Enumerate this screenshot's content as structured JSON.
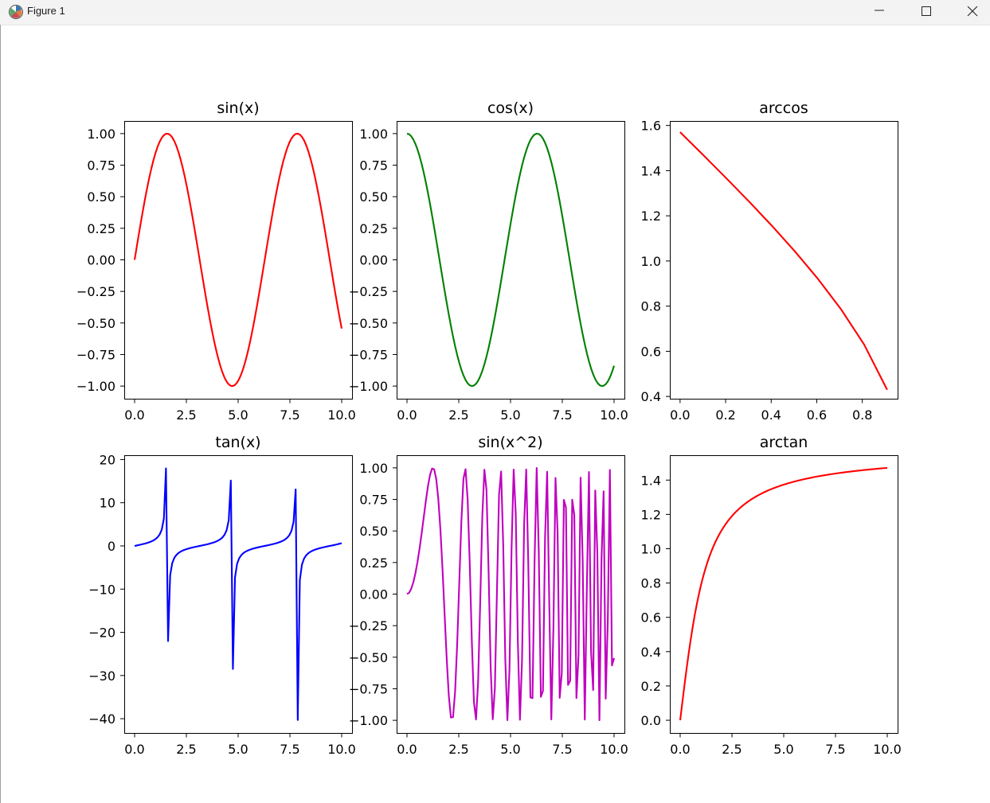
{
  "window": {
    "title": "Figure 1",
    "icons": {
      "app": "matplotlib-figure-icon",
      "minimize": "minimize-icon",
      "maximize": "maximize-icon",
      "close": "close-icon"
    }
  },
  "chart_data": [
    {
      "type": "line",
      "title": "sin(x)",
      "function": "sin(x)",
      "color": "#ff0000",
      "x_range": [
        0,
        10
      ],
      "n_points": 100,
      "xlim": [
        -0.5,
        10.5
      ],
      "ylim": [
        -1.1,
        1.1
      ],
      "xticks": [
        0,
        2.5,
        5,
        7.5,
        10
      ],
      "xtick_labels": [
        "0.0",
        "2.5",
        "5.0",
        "7.5",
        "10.0"
      ],
      "yticks": [
        1,
        0.75,
        0.5,
        0.25,
        0,
        -0.25,
        -0.5,
        -0.75,
        -1
      ],
      "ytick_labels": [
        "1.00",
        "0.75",
        "0.50",
        "0.25",
        "0.00",
        "−0.25",
        "−0.50",
        "−0.75",
        "−1.00"
      ],
      "grid": false
    },
    {
      "type": "line",
      "title": "cos(x)",
      "function": "cos(x)",
      "color": "#008000",
      "x_range": [
        0,
        10
      ],
      "n_points": 100,
      "xlim": [
        -0.5,
        10.5
      ],
      "ylim": [
        -1.1,
        1.1
      ],
      "xticks": [
        0,
        2.5,
        5,
        7.5,
        10
      ],
      "xtick_labels": [
        "0.0",
        "2.5",
        "5.0",
        "7.5",
        "10.0"
      ],
      "yticks": [
        1,
        0.75,
        0.5,
        0.25,
        0,
        -0.25,
        -0.5,
        -0.75,
        -1
      ],
      "ytick_labels": [
        "1.00",
        "0.75",
        "0.50",
        "0.25",
        "0.00",
        "−0.25",
        "−0.50",
        "−0.75",
        "−1.00"
      ],
      "grid": false
    },
    {
      "type": "line",
      "title": "arccos",
      "function": "arccos(x)",
      "color": "#ff0000",
      "x_values": [
        0,
        0.1010101,
        0.2020202,
        0.3030303,
        0.4040404,
        0.5050505,
        0.6060606,
        0.7070707,
        0.8080808,
        0.9090909
      ],
      "xlim": [
        -0.045,
        0.955
      ],
      "ylim": [
        0.39,
        1.62
      ],
      "xticks": [
        0,
        0.2,
        0.4,
        0.6,
        0.8
      ],
      "xtick_labels": [
        "0.0",
        "0.2",
        "0.4",
        "0.6",
        "0.8"
      ],
      "yticks": [
        1.6,
        1.4,
        1.2,
        1.0,
        0.8,
        0.6,
        0.4
      ],
      "ytick_labels": [
        "1.6",
        "1.4",
        "1.2",
        "1.0",
        "0.8",
        "0.6",
        "0.4"
      ],
      "grid": false
    },
    {
      "type": "line",
      "title": "tan(x)",
      "function": "tan(x)",
      "color": "#0000ff",
      "x_range": [
        0,
        10
      ],
      "n_points": 100,
      "xlim": [
        -0.5,
        10.5
      ],
      "ylim": [
        -43.3,
        21.0
      ],
      "xticks": [
        0,
        2.5,
        5,
        7.5,
        10
      ],
      "xtick_labels": [
        "0.0",
        "2.5",
        "5.0",
        "7.5",
        "10.0"
      ],
      "yticks": [
        20,
        10,
        0,
        -10,
        -20,
        -30,
        -40
      ],
      "ytick_labels": [
        "20",
        "10",
        "0",
        "−10",
        "−20",
        "−30",
        "−40"
      ],
      "grid": false
    },
    {
      "type": "line",
      "title": "sin(x^2)",
      "function": "sin(x^2)",
      "color": "#bf00bf",
      "x_range": [
        0,
        10
      ],
      "n_points": 100,
      "xlim": [
        -0.5,
        10.5
      ],
      "ylim": [
        -1.1,
        1.1
      ],
      "xticks": [
        0,
        2.5,
        5,
        7.5,
        10
      ],
      "xtick_labels": [
        "0.0",
        "2.5",
        "5.0",
        "7.5",
        "10.0"
      ],
      "yticks": [
        1,
        0.75,
        0.5,
        0.25,
        0,
        -0.25,
        -0.5,
        -0.75,
        -1
      ],
      "ytick_labels": [
        "1.00",
        "0.75",
        "0.50",
        "0.25",
        "0.00",
        "−0.25",
        "−0.50",
        "−0.75",
        "−1.00"
      ],
      "grid": false
    },
    {
      "type": "line",
      "title": "arctan",
      "function": "arctan(x)",
      "color": "#ff0000",
      "x_range": [
        0,
        10
      ],
      "n_points": 100,
      "xlim": [
        -0.5,
        10.5
      ],
      "ylim": [
        -0.074,
        1.545
      ],
      "xticks": [
        0,
        2.5,
        5,
        7.5,
        10
      ],
      "xtick_labels": [
        "0.0",
        "2.5",
        "5.0",
        "7.5",
        "10.0"
      ],
      "yticks": [
        1.4,
        1.2,
        1.0,
        0.8,
        0.6,
        0.4,
        0.2,
        0.0
      ],
      "ytick_labels": [
        "1.4",
        "1.2",
        "1.0",
        "0.8",
        "0.6",
        "0.4",
        "0.2",
        "0.0"
      ],
      "grid": false
    }
  ]
}
